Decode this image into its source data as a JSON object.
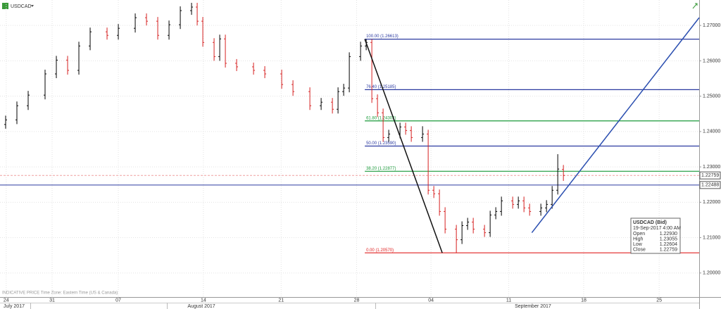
{
  "chart_data": {
    "type": "ohlc",
    "symbol": "USDCAD",
    "note": "INDICATIVE PRICE   Time Zone: Eastern Time (US & Canada)",
    "up_color": "#000000",
    "down_color": "#d62020",
    "x": [
      1,
      3,
      5,
      8,
      10,
      12,
      14,
      16,
      19,
      21,
      24,
      26,
      28,
      30,
      32,
      34,
      35,
      36,
      38,
      39,
      40,
      42,
      45,
      47,
      50,
      52,
      55,
      57,
      59,
      60,
      61,
      62,
      64,
      65,
      66,
      67,
      68,
      69,
      71,
      72,
      73,
      75,
      76,
      77,
      78,
      79,
      81,
      82,
      83,
      84,
      86,
      87,
      88,
      89,
      91,
      92,
      93,
      94,
      96,
      97,
      98,
      99,
      100
    ],
    "open": [
      1.242,
      1.2433,
      1.2473,
      1.2503,
      1.2563,
      1.2602,
      1.2573,
      1.2642,
      1.2682,
      1.2672,
      1.2692,
      1.2722,
      1.2712,
      1.2672,
      1.2702,
      1.2742,
      1.2752,
      1.2712,
      1.2652,
      1.2612,
      1.2662,
      1.2593,
      1.2583,
      1.2573,
      1.2563,
      1.2533,
      1.2513,
      1.2473,
      1.2483,
      1.2463,
      1.2513,
      1.2523,
      1.2612,
      1.2642,
      1.2652,
      1.2493,
      1.2453,
      1.2383,
      1.2393,
      1.2413,
      1.2403,
      1.2383,
      1.2393,
      1.2234,
      1.2224,
      1.2174,
      1.2124,
      1.2094,
      1.2134,
      1.2144,
      1.2124,
      1.2114,
      1.2164,
      1.2174,
      1.2204,
      1.2194,
      1.2204,
      1.2184,
      1.2174,
      1.2184,
      1.2194,
      1.2234,
      1.2293
    ],
    "high": [
      1.2445,
      1.2485,
      1.2515,
      1.2575,
      1.2614,
      1.2614,
      1.2654,
      1.2694,
      1.2694,
      1.2704,
      1.2734,
      1.2734,
      1.2724,
      1.2714,
      1.2754,
      1.2764,
      1.2764,
      1.2724,
      1.2664,
      1.2674,
      1.2674,
      1.2605,
      1.2595,
      1.2585,
      1.2575,
      1.2545,
      1.2525,
      1.2495,
      1.2495,
      1.2525,
      1.2535,
      1.2624,
      1.2654,
      1.2661,
      1.2661,
      1.2505,
      1.2465,
      1.2405,
      1.2425,
      1.2425,
      1.2415,
      1.2415,
      1.2405,
      1.2246,
      1.2236,
      1.2186,
      1.2136,
      1.2146,
      1.2156,
      1.2156,
      1.2136,
      1.2176,
      1.2186,
      1.2216,
      1.2216,
      1.2216,
      1.2216,
      1.2196,
      1.2196,
      1.2206,
      1.2246,
      1.2336,
      1.23055
    ],
    "low": [
      1.2408,
      1.2421,
      1.2461,
      1.2491,
      1.2551,
      1.2561,
      1.2561,
      1.263,
      1.266,
      1.266,
      1.268,
      1.27,
      1.266,
      1.266,
      1.269,
      1.273,
      1.27,
      1.264,
      1.26,
      1.26,
      1.2581,
      1.2571,
      1.2561,
      1.2551,
      1.2521,
      1.2501,
      1.2461,
      1.2461,
      1.2451,
      1.2451,
      1.2501,
      1.2511,
      1.26,
      1.263,
      1.2481,
      1.2441,
      1.2371,
      1.2371,
      1.2381,
      1.2391,
      1.2371,
      1.2371,
      1.2222,
      1.2212,
      1.2162,
      1.2112,
      1.2057,
      1.2082,
      1.2122,
      1.2112,
      1.2102,
      1.2102,
      1.2152,
      1.2162,
      1.2182,
      1.2182,
      1.2172,
      1.2162,
      1.2162,
      1.2172,
      1.2182,
      1.2222,
      1.22604
    ],
    "close": [
      1.2433,
      1.2473,
      1.2503,
      1.2563,
      1.2602,
      1.2573,
      1.2642,
      1.2682,
      1.2672,
      1.2692,
      1.2722,
      1.2712,
      1.2672,
      1.2702,
      1.2742,
      1.2752,
      1.2712,
      1.2652,
      1.2612,
      1.2662,
      1.2593,
      1.2583,
      1.2573,
      1.2563,
      1.2533,
      1.2513,
      1.2473,
      1.2483,
      1.2463,
      1.2513,
      1.2523,
      1.2612,
      1.2642,
      1.2652,
      1.2493,
      1.2453,
      1.2383,
      1.2393,
      1.2413,
      1.2403,
      1.2383,
      1.2393,
      1.2234,
      1.2224,
      1.2174,
      1.2124,
      1.2094,
      1.2134,
      1.2144,
      1.2124,
      1.2114,
      1.2164,
      1.2174,
      1.2204,
      1.2194,
      1.2204,
      1.2184,
      1.2174,
      1.2184,
      1.2194,
      1.2234,
      1.2294,
      1.22759
    ],
    "xlim": [
      0,
      124.1
    ],
    "ylim": [
      1.1932,
      1.2772
    ],
    "yticks": [
      {
        "value": 1.2,
        "label": "1.20000"
      },
      {
        "value": 1.21,
        "label": "1.21000"
      },
      {
        "value": 1.22,
        "label": "1.22000"
      },
      {
        "value": 1.23,
        "label": "1.23000"
      },
      {
        "value": 1.24,
        "label": "1.24000"
      },
      {
        "value": 1.25,
        "label": "1.25000"
      },
      {
        "value": 1.26,
        "label": "1.26000"
      },
      {
        "value": 1.27,
        "label": "1.27000"
      }
    ],
    "xticks": [
      {
        "value": 1.1,
        "label": "24"
      },
      {
        "value": 9.25,
        "label": "31"
      },
      {
        "value": 21,
        "label": "07"
      },
      {
        "value": 36.1,
        "label": "14"
      },
      {
        "value": 49.9,
        "label": "21"
      },
      {
        "value": 63.3,
        "label": "28"
      },
      {
        "value": 76.5,
        "label": "04"
      },
      {
        "value": 90.3,
        "label": "11"
      },
      {
        "value": 103.6,
        "label": "18"
      },
      {
        "value": 117,
        "label": "25"
      }
    ],
    "month_labels": [
      {
        "value": 2.5,
        "label": "July 2017"
      },
      {
        "value": 35.75,
        "label": "August 2017"
      },
      {
        "value": 94.6,
        "label": "September 2017"
      }
    ],
    "grid": true,
    "fib_start": 64.75,
    "fib_levels": [
      {
        "value": 1.26613,
        "label": "100.00 (1.26613)",
        "color": "#2b3aa0"
      },
      {
        "value": 1.25185,
        "label": "76.40 (1.25185)",
        "color": "#2b3aa0"
      },
      {
        "value": 1.24302,
        "label": "61.80 (1.24302)",
        "color": "#1a9a3a"
      },
      {
        "value": 1.2359,
        "label": "50.00 (1.23590)",
        "color": "#2b3aa0"
      },
      {
        "value": 1.22877,
        "label": "38.20 (1.22877)",
        "color": "#1a9a3a"
      },
      {
        "value": 1.2057,
        "label": "0.00 (1.20570)",
        "color": "#e02020"
      }
    ],
    "hlines": [
      {
        "value": 1.22488,
        "label": "1.22488",
        "color": "#2b3aa0",
        "dashed": false
      },
      {
        "value": 1.22759,
        "label": "1.22759",
        "color": "#f0a0a0",
        "dashed": true
      }
    ],
    "trend_lines": [
      {
        "x": [
          64.75,
          78.5
        ],
        "y": [
          1.26613,
          1.2057
        ],
        "color": "#111111"
      },
      {
        "x": [
          94.4,
          124.1
        ],
        "y": [
          1.2114,
          1.2722
        ],
        "color": "#2b4fb0"
      }
    ],
    "tooltip": {
      "title": "USDCAD (Bid)",
      "date": "19-Sep-2017 4:00 AM",
      "rows": [
        {
          "label": "Open",
          "value": "1.22930"
        },
        {
          "label": "High",
          "value": "1.23055"
        },
        {
          "label": "Low",
          "value": "1.22604"
        },
        {
          "label": "Close",
          "value": "1.22759"
        }
      ]
    }
  }
}
